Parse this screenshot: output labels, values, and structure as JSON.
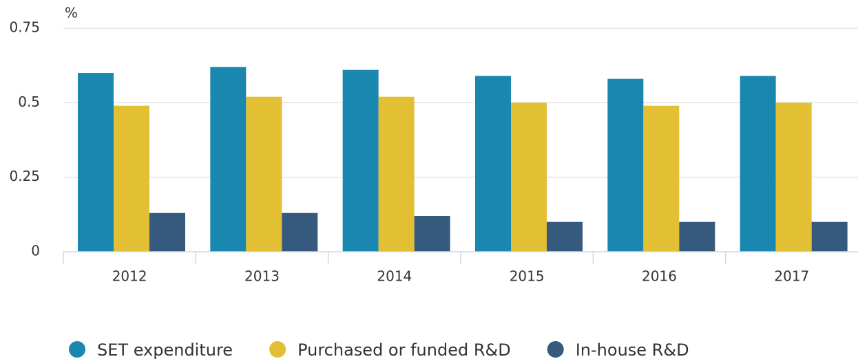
{
  "chart_data": {
    "type": "bar",
    "y_unit": "%",
    "categories": [
      "2012",
      "2013",
      "2014",
      "2015",
      "2016",
      "2017"
    ],
    "series": [
      {
        "name": "SET expenditure",
        "color": "#1a87b0",
        "values": [
          0.6,
          0.62,
          0.61,
          0.59,
          0.58,
          0.59
        ]
      },
      {
        "name": "Purchased or funded R&D",
        "color": "#e3c033",
        "values": [
          0.49,
          0.52,
          0.52,
          0.5,
          0.49,
          0.5
        ]
      },
      {
        "name": "In-house R&D",
        "color": "#365a7d",
        "values": [
          0.13,
          0.13,
          0.12,
          0.1,
          0.1,
          0.1
        ]
      }
    ],
    "ylim": [
      0,
      0.75
    ],
    "yticks": [
      0,
      0.25,
      0.5,
      0.75
    ],
    "grid": true,
    "legend": "bottom"
  }
}
